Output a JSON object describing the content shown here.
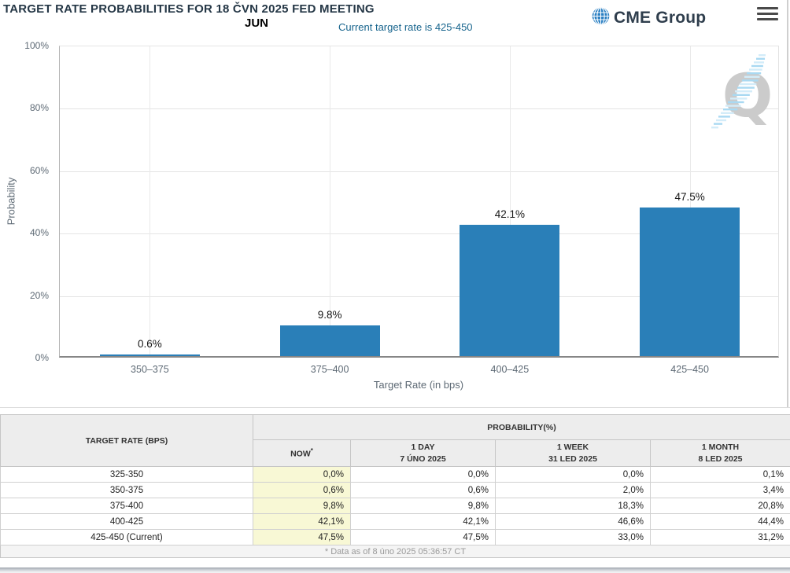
{
  "header": {
    "title": "TARGET RATE PROBABILITIES FOR 18 ČVN 2025 FED MEETING",
    "month_label": "JUN",
    "subtitle": "Current target rate is 425-450",
    "brand": "CME Group"
  },
  "chart_data": {
    "type": "bar",
    "categories": [
      "350–375",
      "375–400",
      "400–425",
      "425–450"
    ],
    "values": [
      0.6,
      9.8,
      42.1,
      47.5
    ],
    "value_labels": [
      "0.6%",
      "9.8%",
      "42.1%",
      "47.5%"
    ],
    "xlabel": "Target Rate (in bps)",
    "ylabel": "Probability",
    "ylim": [
      0,
      100
    ],
    "ytick_step": 20,
    "yticks": [
      "0%",
      "20%",
      "40%",
      "60%",
      "80%",
      "100%"
    ],
    "grid": true,
    "legend": "none",
    "bar_color": "#2a7fb8",
    "watermark_letter": "Q"
  },
  "table": {
    "headers": {
      "col1": "TARGET RATE (BPS)",
      "group": "PROBABILITY(%)",
      "sub": [
        {
          "label": "NOW",
          "note": "*",
          "date": ""
        },
        {
          "label": "1 DAY",
          "note": "",
          "date": "7 ÚNO 2025"
        },
        {
          "label": "1 WEEK",
          "note": "",
          "date": "31 LED 2025"
        },
        {
          "label": "1 MONTH",
          "note": "",
          "date": "8 LED 2025"
        }
      ]
    },
    "rows": [
      {
        "rate": "325-350",
        "values": [
          "0,0%",
          "0,0%",
          "0,0%",
          "0,1%"
        ]
      },
      {
        "rate": "350-375",
        "values": [
          "0,6%",
          "0,6%",
          "2,0%",
          "3,4%"
        ]
      },
      {
        "rate": "375-400",
        "values": [
          "9,8%",
          "9,8%",
          "18,3%",
          "20,8%"
        ]
      },
      {
        "rate": "400-425",
        "values": [
          "42,1%",
          "42,1%",
          "46,6%",
          "44,4%"
        ]
      },
      {
        "rate": "425-450 (Current)",
        "values": [
          "47,5%",
          "47,5%",
          "33,0%",
          "31,2%"
        ]
      }
    ],
    "footnote": "* Data as of 8 úno 2025 05:36:57 CT"
  },
  "colors": {
    "bar": "#2a7fb8",
    "title_text": "#253746",
    "subtitle_text": "#17648d",
    "axis_text": "#5e6a75",
    "now_column_bg": "#f8f8d5",
    "table_header_bg": "#ededed"
  }
}
